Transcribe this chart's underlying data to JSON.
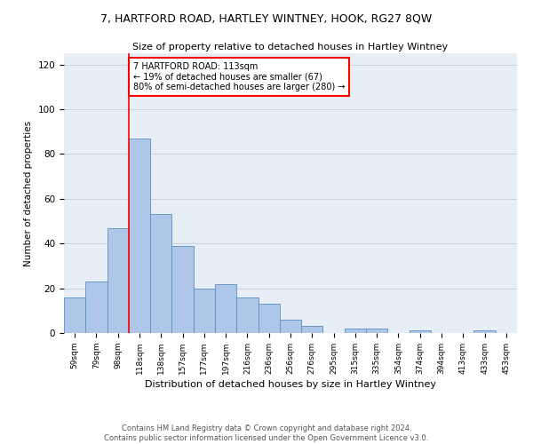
{
  "title": "7, HARTFORD ROAD, HARTLEY WINTNEY, HOOK, RG27 8QW",
  "subtitle": "Size of property relative to detached houses in Hartley Wintney",
  "xlabel": "Distribution of detached houses by size in Hartley Wintney",
  "ylabel": "Number of detached properties",
  "footer_line1": "Contains HM Land Registry data © Crown copyright and database right 2024.",
  "footer_line2": "Contains public sector information licensed under the Open Government Licence v3.0.",
  "categories": [
    "59sqm",
    "79sqm",
    "98sqm",
    "118sqm",
    "138sqm",
    "157sqm",
    "177sqm",
    "197sqm",
    "216sqm",
    "236sqm",
    "256sqm",
    "276sqm",
    "295sqm",
    "315sqm",
    "335sqm",
    "354sqm",
    "374sqm",
    "394sqm",
    "413sqm",
    "433sqm",
    "453sqm"
  ],
  "values": [
    16,
    23,
    47,
    87,
    53,
    39,
    20,
    22,
    16,
    13,
    6,
    3,
    0,
    2,
    2,
    0,
    1,
    0,
    0,
    1,
    0
  ],
  "bar_color": "#aec6e8",
  "bar_edge_color": "#5a8fc2",
  "grid_color": "#c8d4e0",
  "background_color": "#e8eef5",
  "annotation_text": "7 HARTFORD ROAD: 113sqm\n← 19% of detached houses are smaller (67)\n80% of semi-detached houses are larger (280) →",
  "annotation_box_color": "white",
  "annotation_box_edge_color": "red",
  "vline_color": "red",
  "ylim": [
    0,
    125
  ],
  "yticks": [
    0,
    20,
    40,
    60,
    80,
    100,
    120
  ]
}
